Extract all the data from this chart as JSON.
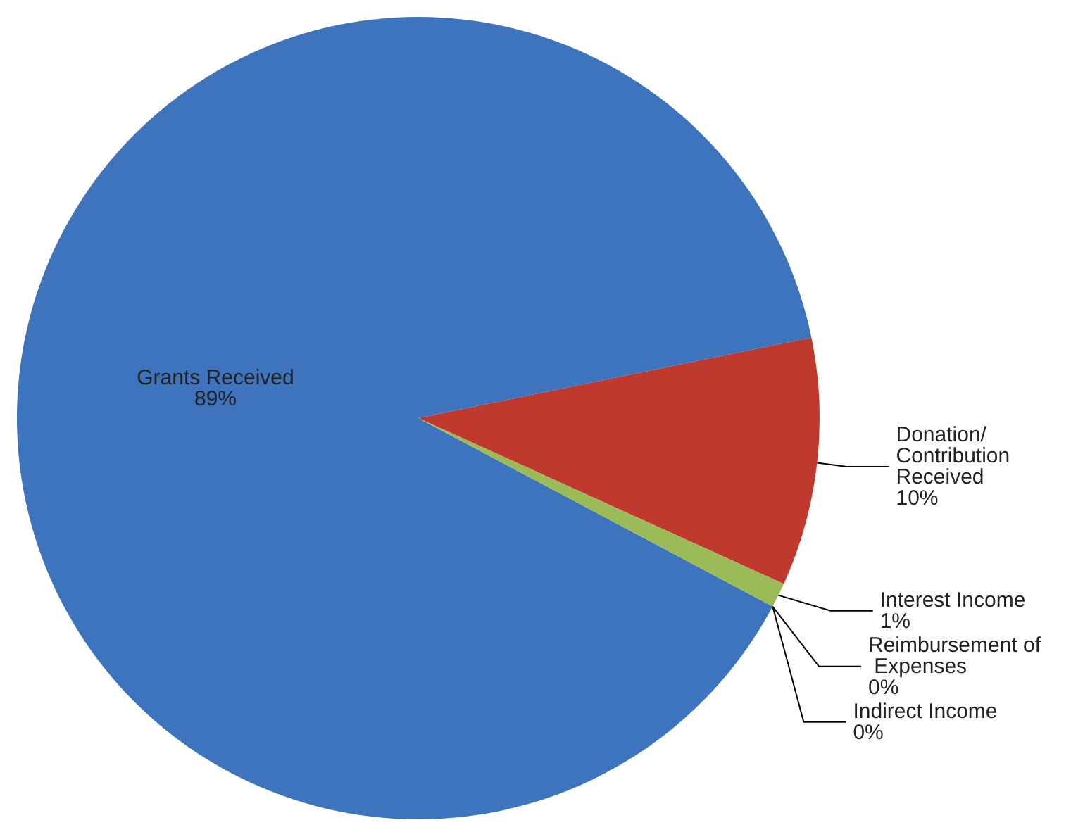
{
  "chart_data": {
    "type": "pie",
    "categories": [
      "Grants Received",
      "Donation/ Contribution Received",
      "Interest Income",
      "Indirect Income",
      "Reimbursement of Expenses"
    ],
    "values": [
      89,
      10,
      1,
      0,
      0
    ],
    "value_labels": [
      "89%",
      "10%",
      "1%",
      "0%",
      "0%"
    ],
    "colors": [
      "#3d74bd",
      "#c0392f",
      "#9bbb59",
      "#7f64a2",
      "#4bacc6"
    ],
    "legend": false
  }
}
